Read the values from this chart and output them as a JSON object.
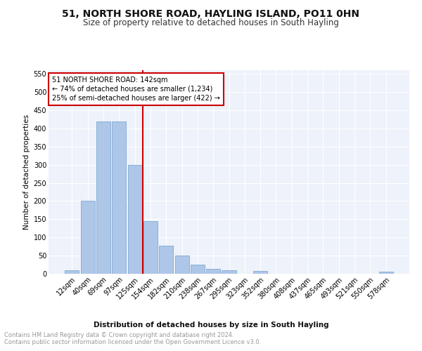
{
  "title1": "51, NORTH SHORE ROAD, HAYLING ISLAND, PO11 0HN",
  "title2": "Size of property relative to detached houses in South Hayling",
  "xlabel": "Distribution of detached houses by size in South Hayling",
  "ylabel": "Number of detached properties",
  "bar_labels": [
    "12sqm",
    "40sqm",
    "69sqm",
    "97sqm",
    "125sqm",
    "154sqm",
    "182sqm",
    "210sqm",
    "238sqm",
    "267sqm",
    "295sqm",
    "323sqm",
    "352sqm",
    "380sqm",
    "408sqm",
    "437sqm",
    "465sqm",
    "493sqm",
    "521sqm",
    "550sqm",
    "578sqm"
  ],
  "bar_values": [
    10,
    200,
    420,
    420,
    300,
    145,
    78,
    50,
    25,
    13,
    10,
    0,
    7,
    0,
    0,
    0,
    0,
    0,
    0,
    0,
    5
  ],
  "bar_color": "#aec6e8",
  "bar_edge_color": "#7eaad3",
  "vline_color": "#cc0000",
  "annotation_text": "51 NORTH SHORE ROAD: 142sqm\n← 74% of detached houses are smaller (1,234)\n25% of semi-detached houses are larger (422) →",
  "annotation_box_color": "#ffffff",
  "annotation_box_edge_color": "#cc0000",
  "ylim": [
    0,
    560
  ],
  "yticks": [
    0,
    50,
    100,
    150,
    200,
    250,
    300,
    350,
    400,
    450,
    500,
    550
  ],
  "footer_text": "Contains HM Land Registry data © Crown copyright and database right 2024.\nContains public sector information licensed under the Open Government Licence v3.0.",
  "bg_color": "#ffffff",
  "plot_bg_color": "#eef2fa",
  "grid_color": "#ffffff",
  "title1_fontsize": 10,
  "title2_fontsize": 8.5,
  "axis_label_fontsize": 7.5,
  "tick_fontsize": 7,
  "footer_fontsize": 6,
  "annotation_fontsize": 7
}
